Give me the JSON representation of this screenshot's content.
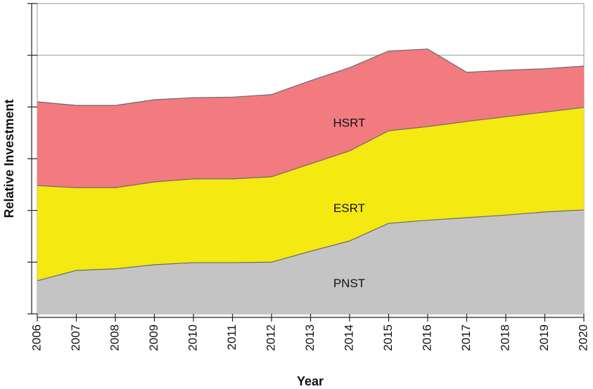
{
  "chart_data": {
    "type": "stacked_area",
    "x_label": "Year",
    "y_label": "Relative Investment",
    "x": [
      2006,
      2007,
      2008,
      2009,
      2010,
      2011,
      2012,
      2013,
      2014,
      2015,
      2016,
      2017,
      2018,
      2019,
      2020
    ],
    "xlim": [
      2006,
      2020
    ],
    "xticks": [
      2006,
      2007,
      2008,
      2009,
      2010,
      2011,
      2012,
      2013,
      2014,
      2015,
      2016,
      2017,
      2018,
      2019,
      2020
    ],
    "ylim": [
      0,
      6
    ],
    "yticks": [
      0,
      1,
      2,
      3,
      4,
      5,
      6
    ],
    "gridlines": [
      5
    ],
    "series": [
      {
        "name": "PNST",
        "color": "#c4c4c4",
        "values": [
          0.64,
          0.84,
          0.87,
          0.95,
          0.99,
          0.99,
          1.0,
          1.21,
          1.41,
          1.75,
          1.81,
          1.86,
          1.91,
          1.97,
          2.01
        ]
      },
      {
        "name": "ESRT",
        "color": "#f4e910",
        "values": [
          1.84,
          1.6,
          1.57,
          1.6,
          1.62,
          1.62,
          1.65,
          1.69,
          1.74,
          1.79,
          1.81,
          1.86,
          1.9,
          1.93,
          1.98
        ]
      },
      {
        "name": "HSRT",
        "color": "#f27b80",
        "values": [
          1.62,
          1.59,
          1.59,
          1.59,
          1.57,
          1.58,
          1.59,
          1.61,
          1.61,
          1.54,
          1.5,
          0.95,
          0.9,
          0.84,
          0.8
        ]
      }
    ]
  }
}
